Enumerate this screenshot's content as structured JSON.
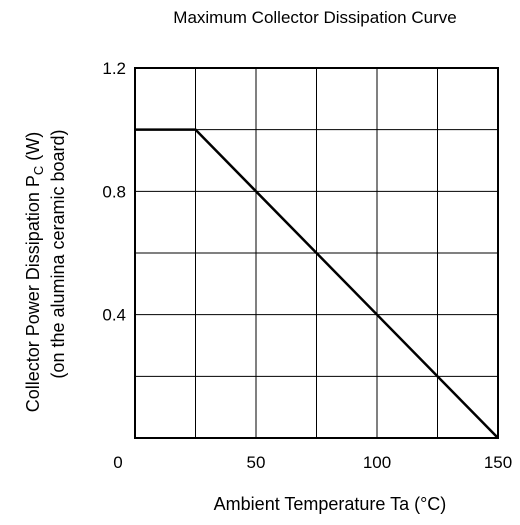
{
  "chart_data": {
    "type": "line",
    "title": "Maximum Collector Dissipation Curve",
    "xlabel": "Ambient Temperature  Ta  (°C)",
    "ylabel_line1_prefix": "Collector Power Dissipation  P",
    "ylabel_line1_sub": "C",
    "ylabel_line1_suffix": "  (W)",
    "ylabel_line2": "(on the alumina ceramic board)",
    "xlim": [
      0,
      150
    ],
    "ylim": [
      0,
      1.2
    ],
    "x_gridlines": [
      25,
      50,
      75,
      100,
      125
    ],
    "y_gridlines": [
      0.2,
      0.4,
      0.6,
      0.8,
      1.0
    ],
    "x_ticks": [
      {
        "value": 0,
        "label": "0"
      },
      {
        "value": 50,
        "label": "50"
      },
      {
        "value": 100,
        "label": "100"
      },
      {
        "value": 150,
        "label": "150"
      }
    ],
    "y_ticks": [
      {
        "value": 0.4,
        "label": "0.4"
      },
      {
        "value": 0.8,
        "label": "0.8"
      },
      {
        "value": 1.2,
        "label": "1.2"
      }
    ],
    "grid": true,
    "series": [
      {
        "x": [
          0,
          25,
          150
        ],
        "y": [
          1.0,
          1.0,
          0
        ]
      }
    ],
    "colors": {
      "line": "#000000",
      "grid": "#000000",
      "frame": "#000000"
    }
  }
}
